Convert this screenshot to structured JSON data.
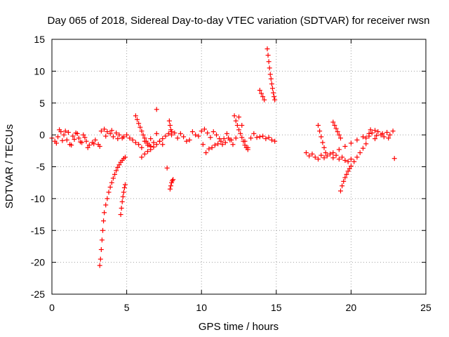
{
  "chart_data": {
    "type": "scatter",
    "title": "Day 065 of 2018, Sidereal Day-to-day VTEC variation (SDTVAR) for receiver rwsn",
    "xlabel": "GPS time / hours",
    "ylabel": "SDTVAR / TECUs",
    "xlim": [
      0,
      25
    ],
    "ylim": [
      -25,
      15
    ],
    "xticks": [
      "0",
      "5",
      "10",
      "15",
      "20",
      "25"
    ],
    "yticks": [
      "15",
      "10",
      "5",
      "0",
      "-5",
      "-10",
      "-15",
      "-20",
      "-25"
    ],
    "grid": true,
    "marker": "+",
    "color": "#ff0000",
    "series": [
      {
        "name": "main-band-1",
        "x": [
          0.0,
          0.2,
          0.4,
          0.6,
          0.8,
          1.0,
          1.2,
          1.4,
          1.6,
          1.8,
          2.0,
          2.2,
          0.5,
          0.9,
          1.3,
          1.7,
          2.1,
          0.3,
          0.7,
          1.1,
          1.5,
          1.9
        ],
        "y": [
          -0.5,
          -1.0,
          -0.3,
          0.5,
          0.0,
          -0.8,
          -1.5,
          -0.2,
          0.3,
          -0.5,
          -1.2,
          -0.4,
          0.8,
          0.6,
          -1.6,
          0.2,
          0.0,
          -1.3,
          -0.9,
          0.4,
          -0.7,
          -1.1
        ]
      },
      {
        "name": "main-band-2",
        "x": [
          2.3,
          2.5,
          2.7,
          2.9,
          3.1,
          3.3,
          3.5,
          3.7,
          3.9,
          4.1,
          4.3,
          4.5,
          4.7,
          2.4,
          2.8,
          3.2,
          3.6,
          4.0,
          4.4
        ],
        "y": [
          -1.0,
          -1.6,
          -1.2,
          -0.8,
          -1.5,
          0.6,
          0.9,
          0.5,
          0.2,
          -0.3,
          0.3,
          0.0,
          -0.5,
          -2.0,
          -1.4,
          -1.8,
          -0.2,
          0.7,
          -0.6
        ]
      },
      {
        "name": "deep-arc-1",
        "x": [
          3.2,
          3.25,
          3.3,
          3.35,
          3.4,
          3.45,
          3.5,
          3.6,
          3.7,
          3.8,
          3.9,
          4.0,
          4.1,
          4.2,
          4.3,
          4.4,
          4.5,
          4.6,
          4.7,
          4.8,
          4.9
        ],
        "y": [
          -20.5,
          -19.5,
          -18.0,
          -16.5,
          -15.0,
          -13.5,
          -12.2,
          -11.0,
          -10.0,
          -9.0,
          -8.2,
          -7.5,
          -6.8,
          -6.2,
          -5.6,
          -5.1,
          -4.7,
          -4.3,
          -4.0,
          -3.7,
          -3.5
        ]
      },
      {
        "name": "deep-arc-2",
        "x": [
          4.6,
          4.65,
          4.7,
          4.75,
          4.8,
          4.85,
          4.9
        ],
        "y": [
          -12.5,
          -11.5,
          -10.5,
          -9.7,
          -9.0,
          -8.3,
          -7.8
        ]
      },
      {
        "name": "main-band-3",
        "x": [
          4.8,
          5.0,
          5.2,
          5.4,
          5.6,
          5.8,
          6.0,
          6.2,
          6.4,
          6.6,
          6.8,
          7.0,
          7.2,
          7.4
        ],
        "y": [
          -0.3,
          0.0,
          -0.5,
          -0.8,
          -1.2,
          -1.5,
          -2.0,
          -1.0,
          -1.6,
          -0.6,
          -1.2,
          0.2,
          -1.0,
          -1.5
        ]
      },
      {
        "name": "arc-5-7",
        "x": [
          5.6,
          5.7,
          5.8,
          5.9,
          6.0,
          6.1,
          6.2,
          6.3,
          6.4,
          6.5,
          6.6
        ],
        "y": [
          3.0,
          2.4,
          1.8,
          1.2,
          0.6,
          0.0,
          -0.5,
          -1.0,
          -1.3,
          -1.6,
          -1.8
        ]
      },
      {
        "name": "arc-6-8",
        "x": [
          6.0,
          6.2,
          6.4,
          6.6,
          6.8,
          7.0,
          7.2,
          7.4,
          7.6,
          7.8,
          8.0
        ],
        "y": [
          -3.5,
          -3.0,
          -2.6,
          -2.3,
          -1.9,
          -1.5,
          -1.0,
          -0.6,
          -0.2,
          0.2,
          0.5
        ]
      },
      {
        "name": "spikes-7-8",
        "x": [
          7.0,
          7.7,
          7.9,
          7.95,
          8.0,
          8.05,
          8.1,
          7.85,
          7.9,
          7.95,
          8.0
        ],
        "y": [
          4.0,
          -5.2,
          -8.5,
          -8.0,
          -7.5,
          -7.2,
          -7.0,
          2.2,
          1.5,
          0.8,
          0.0
        ]
      },
      {
        "name": "main-band-4",
        "x": [
          8.2,
          8.4,
          8.6,
          8.8,
          9.0,
          9.2,
          9.4,
          9.6,
          9.8,
          10.0,
          10.2,
          10.4,
          10.6,
          10.8,
          11.0,
          11.2,
          11.4,
          11.6,
          11.8,
          12.0
        ],
        "y": [
          0.3,
          -0.5,
          0.2,
          -0.3,
          -1.0,
          -0.8,
          0.5,
          0.0,
          -0.2,
          0.6,
          0.9,
          0.3,
          -0.4,
          0.5,
          0.0,
          -0.6,
          -1.5,
          -1.2,
          -0.5,
          -0.8
        ]
      },
      {
        "name": "main-band-5",
        "x": [
          10.1,
          10.3,
          10.5,
          10.7,
          10.9,
          11.1,
          11.3,
          11.5,
          11.7,
          11.9,
          12.1,
          12.3,
          12.5,
          12.7,
          12.9,
          13.1,
          13.3,
          13.5,
          13.7,
          13.9,
          14.1,
          14.3,
          14.5,
          14.7,
          14.9
        ],
        "y": [
          -1.5,
          -2.8,
          -2.2,
          -2.0,
          -1.6,
          -1.4,
          -1.0,
          -0.6,
          0.2,
          -0.8,
          -1.5,
          -0.5,
          2.8,
          1.5,
          -1.0,
          -2.0,
          -0.5,
          0.2,
          -0.4,
          -0.3,
          -0.2,
          -0.6,
          -0.4,
          -0.8,
          -1.0
        ]
      },
      {
        "name": "arc-12-13",
        "x": [
          12.2,
          12.3,
          12.4,
          12.5,
          12.6,
          12.7,
          12.8,
          12.9,
          13.0,
          13.1
        ],
        "y": [
          3.0,
          2.2,
          1.5,
          0.8,
          0.2,
          -0.4,
          -1.0,
          -1.6,
          -2.0,
          -2.3
        ]
      },
      {
        "name": "spike-14",
        "x": [
          13.9,
          14.0,
          14.1,
          14.2,
          14.4,
          14.45,
          14.5,
          14.55,
          14.6,
          14.65,
          14.7,
          14.75,
          14.8,
          14.85,
          14.9
        ],
        "y": [
          7.0,
          6.5,
          6.0,
          5.5,
          13.5,
          12.5,
          11.5,
          10.5,
          9.5,
          8.8,
          8.0,
          7.3,
          6.6,
          6.0,
          5.5
        ]
      },
      {
        "name": "main-band-6",
        "x": [
          17.0,
          17.2,
          17.4,
          17.6,
          17.8,
          18.0,
          18.2,
          18.4,
          18.6,
          18.8,
          19.0,
          19.2,
          19.4,
          19.6,
          19.8,
          20.0
        ],
        "y": [
          -2.8,
          -3.3,
          -3.0,
          -3.5,
          -3.8,
          -3.2,
          -3.6,
          -3.3,
          -3.0,
          -3.6,
          -3.2,
          -3.8,
          -3.5,
          -4.0,
          -4.2,
          -3.8
        ]
      },
      {
        "name": "arcs-18-19",
        "x": [
          17.8,
          17.9,
          18.0,
          18.1,
          18.2,
          18.3,
          18.8,
          18.9,
          19.0,
          19.1,
          19.2,
          19.3
        ],
        "y": [
          1.5,
          0.6,
          -0.3,
          -1.2,
          -2.0,
          -2.8,
          2.0,
          1.5,
          1.0,
          0.5,
          0.0,
          -0.5
        ]
      },
      {
        "name": "arc-19-21",
        "x": [
          19.3,
          19.4,
          19.5,
          19.6,
          19.7,
          19.8,
          19.9,
          20.0,
          20.2,
          20.4,
          20.6,
          20.8,
          21.0
        ],
        "y": [
          -8.8,
          -8.0,
          -7.3,
          -6.7,
          -6.2,
          -5.7,
          -5.3,
          -4.9,
          -4.2,
          -3.5,
          -2.8,
          -2.1,
          -1.4
        ]
      },
      {
        "name": "arc-19-22",
        "x": [
          18.8,
          19.2,
          19.6,
          20.0,
          20.4,
          20.8,
          21.2,
          21.6
        ],
        "y": [
          -2.8,
          -2.3,
          -1.8,
          -1.3,
          -0.8,
          -0.3,
          0.2,
          0.7
        ]
      },
      {
        "name": "main-band-7",
        "x": [
          21.0,
          21.2,
          21.4,
          21.6,
          21.8,
          22.0,
          22.2,
          22.4,
          22.6,
          22.8,
          21.3,
          21.7,
          22.1,
          22.5,
          22.9
        ],
        "y": [
          -0.5,
          -0.2,
          0.3,
          -0.6,
          0.5,
          0.0,
          -0.3,
          0.4,
          0.0,
          0.6,
          0.8,
          -0.1,
          0.2,
          -0.5,
          -3.7
        ]
      }
    ]
  }
}
